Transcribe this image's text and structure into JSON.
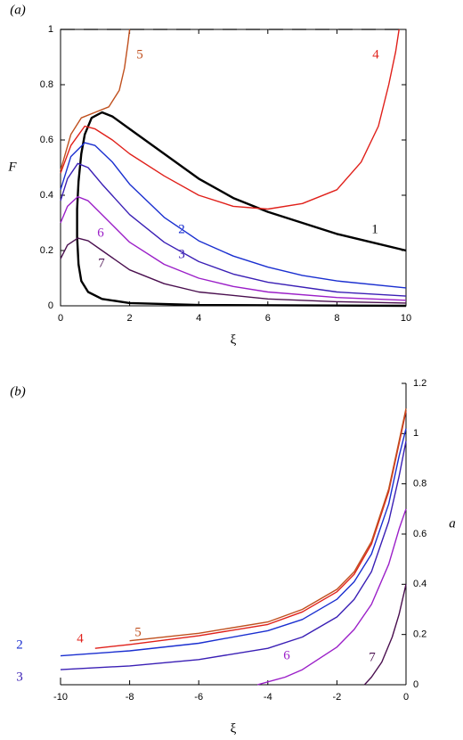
{
  "chart_data": [
    {
      "type": "line",
      "panel_label": "(a)",
      "xlabel": "ξ",
      "ylabel": "F",
      "xlim": [
        0,
        10
      ],
      "ylim": [
        0,
        1
      ],
      "xticks": [
        0,
        2,
        4,
        6,
        8,
        10
      ],
      "yticks": [
        0,
        0.2,
        0.4,
        0.6,
        0.8,
        1
      ],
      "y_axis_side": "left",
      "reference_line": 1,
      "series": [
        {
          "name": "1",
          "color": "#000000",
          "x": [
            10,
            9,
            8,
            7,
            6,
            5,
            4,
            3,
            2,
            1.5,
            1.2,
            0.9,
            0.7,
            0.6,
            0.52,
            0.48,
            0.48,
            0.52,
            0.6,
            0.8,
            1.2,
            2,
            4,
            10
          ],
          "values": [
            0.2,
            0.23,
            0.26,
            0.3,
            0.34,
            0.39,
            0.46,
            0.55,
            0.64,
            0.685,
            0.7,
            0.68,
            0.62,
            0.55,
            0.45,
            0.35,
            0.25,
            0.15,
            0.09,
            0.05,
            0.025,
            0.01,
            0.003,
            0
          ]
        },
        {
          "name": "2",
          "color": "#1a2fd0",
          "x": [
            0,
            0.3,
            0.7,
            1,
            1.5,
            2,
            3,
            4,
            5,
            6,
            7,
            8,
            10
          ],
          "values": [
            0.42,
            0.54,
            0.59,
            0.58,
            0.52,
            0.44,
            0.32,
            0.235,
            0.18,
            0.14,
            0.11,
            0.09,
            0.065
          ]
        },
        {
          "name": "3",
          "color": "#3a1fb5",
          "x": [
            0,
            0.2,
            0.5,
            0.8,
            1.2,
            2,
            3,
            4,
            5,
            6,
            8,
            10
          ],
          "values": [
            0.38,
            0.46,
            0.515,
            0.5,
            0.44,
            0.33,
            0.23,
            0.16,
            0.115,
            0.085,
            0.05,
            0.035
          ]
        },
        {
          "name": "4",
          "color": "#e0201a",
          "x": [
            0,
            0.3,
            0.7,
            1,
            1.5,
            2,
            3,
            4,
            5,
            6,
            7,
            8,
            8.7,
            9.2,
            9.5,
            9.7,
            9.8
          ],
          "values": [
            0.48,
            0.58,
            0.65,
            0.64,
            0.6,
            0.55,
            0.47,
            0.4,
            0.36,
            0.35,
            0.37,
            0.42,
            0.52,
            0.65,
            0.8,
            0.92,
            1
          ]
        },
        {
          "name": "5",
          "color": "#c0501e",
          "x": [
            0,
            0.3,
            0.6,
            1,
            1.4,
            1.7,
            1.85,
            1.95,
            2
          ],
          "values": [
            0.49,
            0.62,
            0.68,
            0.7,
            0.72,
            0.78,
            0.86,
            0.95,
            1
          ]
        },
        {
          "name": "6",
          "color": "#9b1fc8",
          "x": [
            0,
            0.2,
            0.5,
            0.8,
            1.2,
            2,
            3,
            4,
            5,
            6,
            8,
            10
          ],
          "values": [
            0.3,
            0.36,
            0.395,
            0.38,
            0.33,
            0.23,
            0.15,
            0.1,
            0.07,
            0.05,
            0.03,
            0.02
          ]
        },
        {
          "name": "7",
          "color": "#4a0f4f",
          "x": [
            0,
            0.2,
            0.5,
            0.8,
            1.2,
            2,
            3,
            4,
            6,
            8,
            10
          ],
          "values": [
            0.17,
            0.22,
            0.245,
            0.235,
            0.2,
            0.13,
            0.08,
            0.05,
            0.025,
            0.015,
            0.01
          ]
        }
      ]
    },
    {
      "type": "line",
      "panel_label": "(b)",
      "xlabel": "ξ",
      "ylabel": "a",
      "xlim": [
        -10,
        0
      ],
      "ylim": [
        0,
        1.2
      ],
      "xticks": [
        -10,
        -8,
        -6,
        -4,
        -2,
        0
      ],
      "yticks": [
        0,
        0.2,
        0.4,
        0.6,
        0.8,
        1,
        1.2
      ],
      "y_axis_side": "right",
      "series": [
        {
          "name": "2",
          "color": "#1a2fd0",
          "x": [
            -10,
            -8,
            -6,
            -4,
            -3,
            -2,
            -1.5,
            -1,
            -0.5,
            -0.2,
            0
          ],
          "values": [
            0.115,
            0.135,
            0.165,
            0.215,
            0.26,
            0.34,
            0.41,
            0.52,
            0.72,
            0.91,
            1.02
          ]
        },
        {
          "name": "3",
          "color": "#3a1fb5",
          "x": [
            -10,
            -8,
            -6,
            -4,
            -3,
            -2,
            -1.5,
            -1,
            -0.5,
            -0.2,
            0
          ],
          "values": [
            0.06,
            0.075,
            0.1,
            0.145,
            0.19,
            0.27,
            0.34,
            0.45,
            0.65,
            0.83,
            0.97
          ]
        },
        {
          "name": "4",
          "color": "#e0201a",
          "x": [
            -9,
            -8,
            -6,
            -4,
            -3,
            -2,
            -1.5,
            -1,
            -0.5,
            -0.2,
            0
          ],
          "values": [
            0.145,
            0.16,
            0.195,
            0.24,
            0.29,
            0.37,
            0.44,
            0.56,
            0.77,
            0.96,
            1.09
          ]
        },
        {
          "name": "5",
          "color": "#c0501e",
          "x": [
            -8,
            -6,
            -4,
            -3,
            -2,
            -1.5,
            -1,
            -0.5,
            -0.2,
            0
          ],
          "values": [
            0.175,
            0.205,
            0.25,
            0.3,
            0.38,
            0.45,
            0.57,
            0.78,
            0.97,
            1.1
          ]
        },
        {
          "name": "6",
          "color": "#9b1fc8",
          "x": [
            -4.3,
            -3.5,
            -3,
            -2,
            -1.5,
            -1,
            -0.5,
            -0.2,
            0
          ],
          "values": [
            0,
            0.03,
            0.06,
            0.15,
            0.22,
            0.32,
            0.48,
            0.62,
            0.7
          ]
        },
        {
          "name": "7",
          "color": "#4a0f4f",
          "x": [
            -1.2,
            -1,
            -0.7,
            -0.4,
            -0.2,
            0
          ],
          "values": [
            0,
            0.03,
            0.09,
            0.19,
            0.28,
            0.4
          ]
        }
      ]
    }
  ]
}
